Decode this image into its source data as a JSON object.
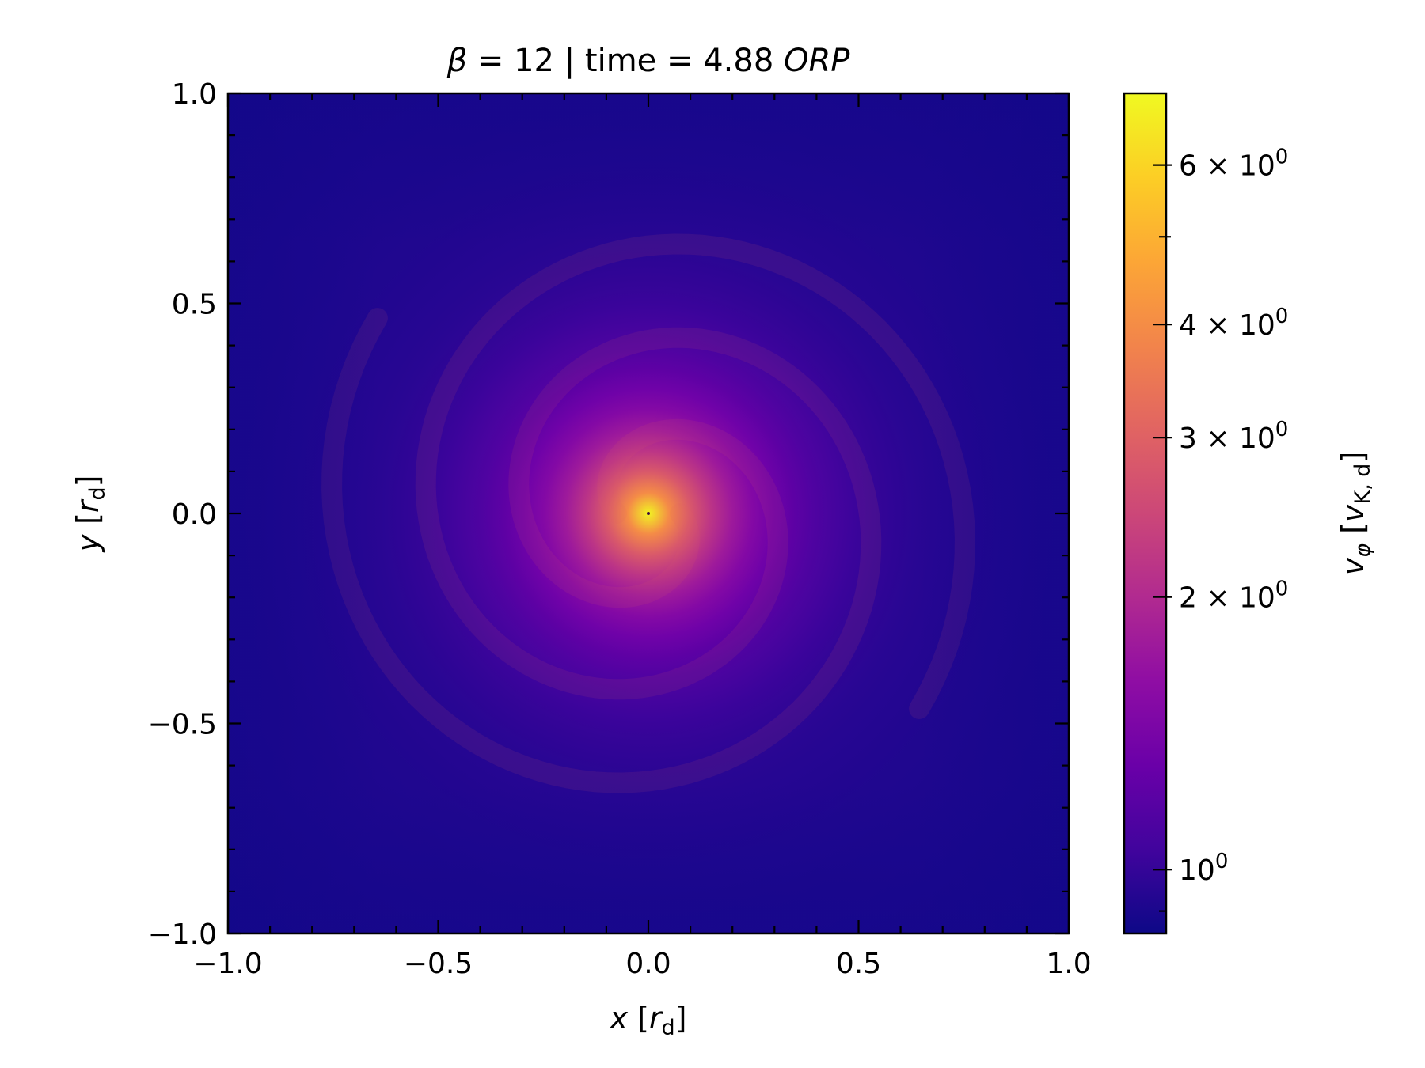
{
  "chart_data": {
    "type": "heatmap",
    "title": {
      "beta_symbol": "β",
      "beta_rest": " = 12 | time = 4.88 ",
      "time_unit": "ORP"
    },
    "xlabel": {
      "var": "x",
      "open": " [",
      "unit": "r",
      "sub": "d",
      "close": "]"
    },
    "ylabel": {
      "var": "y",
      "open": " [",
      "unit": "r",
      "sub": "d",
      "close": "]"
    },
    "xlim": [
      -1.0,
      1.0
    ],
    "ylim": [
      -1.0,
      1.0
    ],
    "x_ticks": [
      -1.0,
      -0.5,
      0.0,
      0.5,
      1.0
    ],
    "y_ticks": [
      -1.0,
      -0.5,
      0.0,
      0.5,
      1.0
    ],
    "x_tick_labels": [
      "−1.0",
      "−0.5",
      "0.0",
      "0.5",
      "1.0"
    ],
    "y_tick_labels": [
      "−1.0",
      "−0.5",
      "0.0",
      "0.5",
      "1.0"
    ],
    "colormap": "plasma",
    "colorbar": {
      "scale": "log",
      "range": [
        0.85,
        7.2
      ],
      "label": {
        "var": "v",
        "var_sub": "φ",
        "open": " [",
        "unit": "v",
        "unit_sub": "K, d",
        "close": "]"
      },
      "major_ticks": [
        {
          "value": 1,
          "mantissa": "",
          "times": "",
          "base": "10",
          "exp": "0"
        },
        {
          "value": 2,
          "mantissa": "2",
          "times": " × ",
          "base": "10",
          "exp": "0"
        },
        {
          "value": 3,
          "mantissa": "3",
          "times": " × ",
          "base": "10",
          "exp": "0"
        },
        {
          "value": 4,
          "mantissa": "4",
          "times": " × ",
          "base": "10",
          "exp": "0"
        },
        {
          "value": 6,
          "mantissa": "6",
          "times": " × ",
          "base": "10",
          "exp": "0"
        }
      ],
      "minor_ticks": [
        5
      ]
    },
    "field": {
      "peak_value": 7.0,
      "center": [
        0.0,
        0.0
      ],
      "corner_value": 0.9,
      "spiral_arms": 2
    },
    "grid": false,
    "colors": {
      "plasma": [
        "#0d0887",
        "#41049d",
        "#6a00a8",
        "#8f0da4",
        "#b12a90",
        "#cc4778",
        "#e16462",
        "#f2844b",
        "#fca636",
        "#fcce25",
        "#f0f921"
      ]
    }
  }
}
